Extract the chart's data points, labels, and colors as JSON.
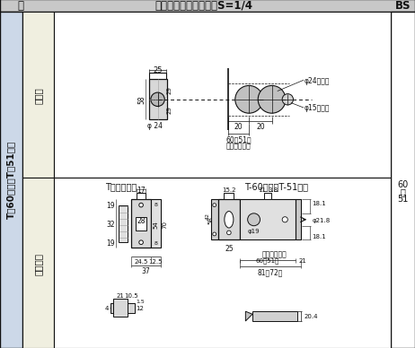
{
  "title": "切欠図・受座・鎖　　S=1/4",
  "white": "#ffffff",
  "cream": "#f0efe0",
  "light_blue": "#ccd8e8",
  "gray": "#aaaaaa",
  "dark": "#111111",
  "header_bg": "#c8c8c8",
  "left_col_text": "T－60空鎖／T－51空鎖",
  "row1_label": "切欠図",
  "row2_label": "受座・鎖",
  "col_label": "鎖",
  "bs_label": "BS",
  "subtitle1": "T空鎖用受座",
  "subtitle2": "T-60空鎖・T-51空鎖",
  "phi24": "φ24貫通孔",
  "phi15": "φ15貫通孔",
  "backset1": "バックセット",
  "backset2": "バックセット"
}
